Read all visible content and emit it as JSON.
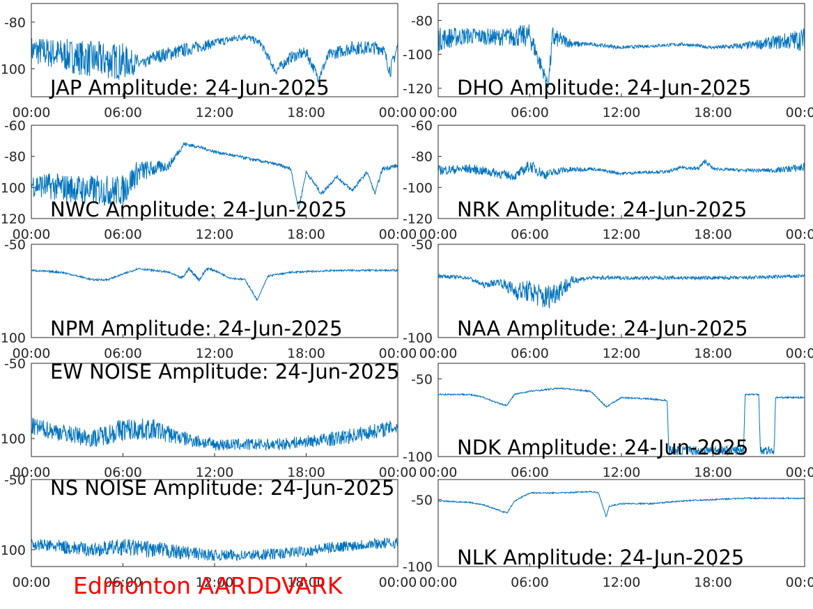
{
  "figure_label": "Edmonton AARDDVARK",
  "colors": {
    "line": "#0072BD",
    "axis": "#262626",
    "footer": "#ff0000"
  },
  "chart_data": [
    {
      "type": "line",
      "title": "JAP Amplitude: 24-Jun-2025",
      "xticks": [
        "00:00",
        "06:00",
        "12:00",
        "18:00",
        "00:00"
      ],
      "ylim": [
        -112,
        -72
      ],
      "yticks": [
        -80,
        -100
      ],
      "ytick_labels": [
        "-80",
        "100"
      ],
      "grid": false,
      "series": [
        {
          "x": [
            0,
            2,
            4,
            6,
            7.4,
            8,
            10,
            12,
            14,
            15,
            16,
            17,
            18,
            18.8,
            19.5,
            21,
            23,
            23.5,
            24
          ],
          "values": [
            -92,
            -94,
            -96,
            -97,
            -98,
            -95,
            -92,
            -89,
            -86,
            -89,
            -101,
            -95,
            -93,
            -104,
            -94,
            -91,
            -91,
            -101,
            -90
          ],
          "noise": [
            12,
            14,
            16,
            16,
            4,
            6,
            6,
            4,
            3,
            3,
            4,
            5,
            5,
            4,
            5,
            6,
            6,
            6,
            6
          ]
        }
      ]
    },
    {
      "type": "line",
      "title": "DHO Amplitude: 24-Jun-2025",
      "xticks": [
        "00:00",
        "06:00",
        "12:00",
        "18:00",
        "00:00"
      ],
      "ylim": [
        -125,
        -70
      ],
      "yticks": [
        -80,
        -100,
        -120
      ],
      "ytick_labels": [
        "-80",
        "-100",
        "-120"
      ],
      "grid": false,
      "series": [
        {
          "x": [
            0,
            2,
            4,
            6,
            7.2,
            7.5,
            7.8,
            9,
            10,
            12,
            14,
            16,
            18,
            20,
            22,
            24
          ],
          "values": [
            -91,
            -89,
            -90,
            -89,
            -118,
            -90,
            -91,
            -94,
            -94,
            -96,
            -95,
            -94,
            -96,
            -95,
            -93,
            -91
          ],
          "noise": [
            14,
            10,
            10,
            14,
            6,
            16,
            10,
            4,
            2,
            2,
            2,
            2,
            2,
            4,
            8,
            14
          ]
        }
      ]
    },
    {
      "type": "line",
      "title": "NWC Amplitude: 24-Jun-2025",
      "xticks": [
        "00:00",
        "06:00",
        "12:00",
        "18:00",
        "00:00"
      ],
      "ylim": [
        -120,
        -60
      ],
      "yticks": [
        -60,
        -80,
        -100,
        -120
      ],
      "ytick_labels": [
        "-60",
        "-80",
        "100",
        "120"
      ],
      "grid": false,
      "series": [
        {
          "x": [
            0,
            2,
            4,
            6,
            7,
            8,
            9,
            10,
            11,
            12,
            14,
            16,
            17,
            17.5,
            18,
            19,
            20,
            21,
            22,
            22.5,
            23,
            24
          ],
          "values": [
            -98,
            -100,
            -102,
            -102,
            -90,
            -88,
            -86,
            -72,
            -74,
            -77,
            -81,
            -85,
            -88,
            -114,
            -90,
            -104,
            -93,
            -102,
            -90,
            -104,
            -88,
            -86
          ],
          "noise": [
            16,
            18,
            20,
            20,
            16,
            10,
            6,
            3,
            2,
            2,
            2,
            2,
            2,
            3,
            2,
            3,
            2,
            3,
            2,
            2,
            3,
            3
          ]
        }
      ]
    },
    {
      "type": "line",
      "title": "NRK Amplitude: 24-Jun-2025",
      "xticks": [
        "00:00",
        "06:00",
        "12:00",
        "18:00",
        "00:00"
      ],
      "ylim": [
        -120,
        -60
      ],
      "yticks": [
        -60,
        -80,
        -100,
        -120
      ],
      "ytick_labels": [
        "-60",
        "-80",
        "-100",
        "-120"
      ],
      "grid": false,
      "series": [
        {
          "x": [
            0,
            2,
            4,
            5,
            6,
            7,
            8,
            10,
            12,
            14,
            15,
            16,
            17,
            17.5,
            18,
            20,
            22,
            24
          ],
          "values": [
            -89,
            -88,
            -91,
            -93,
            -86,
            -92,
            -89,
            -88,
            -91,
            -90,
            -90,
            -87,
            -88,
            -83,
            -88,
            -89,
            -89,
            -87
          ],
          "noise": [
            6,
            6,
            6,
            5,
            8,
            6,
            5,
            2,
            2,
            2,
            2,
            2,
            3,
            3,
            2,
            2,
            3,
            6
          ]
        }
      ]
    },
    {
      "type": "line",
      "title": "NPM Amplitude: 24-Jun-2025",
      "xticks": [
        "00:00",
        "06:00",
        "12:00",
        "18:00",
        "00:00"
      ],
      "ylim": [
        -100,
        -50
      ],
      "yticks": [
        -50,
        -100
      ],
      "ytick_labels": [
        "-50",
        "100"
      ],
      "grid": false,
      "series": [
        {
          "x": [
            0,
            2,
            4,
            5,
            6,
            7,
            9,
            9.8,
            10,
            10.3,
            11,
            11.5,
            12,
            13,
            14,
            14.8,
            15.5,
            17,
            20,
            24
          ],
          "values": [
            -64,
            -65,
            -69,
            -69,
            -66,
            -63,
            -65,
            -68,
            -67,
            -63,
            -69,
            -63,
            -64,
            -68,
            -69,
            -80,
            -67,
            -65,
            -64,
            -64
          ],
          "noise": [
            1,
            1,
            1,
            1,
            1,
            1,
            1,
            1,
            1,
            2,
            2,
            2,
            1,
            1,
            1,
            1,
            1,
            1,
            1,
            1
          ]
        }
      ]
    },
    {
      "type": "line",
      "title": "NAA Amplitude: 24-Jun-2025",
      "xticks": [
        "00:00",
        "06:00",
        "12:00",
        "18:00",
        "00:00"
      ],
      "ylim": [
        -100,
        -50
      ],
      "yticks": [
        -50,
        -100
      ],
      "ytick_labels": [
        "-50",
        "-100"
      ],
      "grid": false,
      "series": [
        {
          "x": [
            0,
            2,
            3,
            4,
            5,
            6,
            7,
            8,
            9,
            10,
            12,
            16,
            20,
            24
          ],
          "values": [
            -67,
            -68,
            -72,
            -70,
            -75,
            -75,
            -79,
            -74,
            -69,
            -68,
            -68,
            -68,
            -68,
            -67
          ],
          "noise": [
            2,
            2,
            3,
            4,
            10,
            12,
            14,
            12,
            4,
            2,
            2,
            2,
            2,
            2
          ]
        }
      ]
    },
    {
      "type": "line",
      "title": "EW NOISE Amplitude: 24-Jun-2025",
      "xticks": [
        "00:00",
        "06:00",
        "12:00",
        "18:00",
        "00:00"
      ],
      "ylim": [
        -112,
        -50
      ],
      "yticks": [
        -50,
        -100
      ],
      "ytick_labels": [
        "-50",
        "100"
      ],
      "grid": false,
      "series": [
        {
          "x": [
            0,
            2,
            4,
            6,
            8,
            10,
            12,
            14,
            16,
            18,
            20,
            22,
            24
          ],
          "values": [
            -92,
            -96,
            -100,
            -94,
            -94,
            -100,
            -104,
            -104,
            -104,
            -102,
            -100,
            -96,
            -92
          ],
          "noise": [
            12,
            12,
            12,
            16,
            14,
            10,
            8,
            8,
            8,
            8,
            10,
            10,
            10
          ]
        }
      ]
    },
    {
      "type": "line",
      "title": "NDK Amplitude: 24-Jun-2025",
      "xticks": [
        "00:00",
        "06:00",
        "12:00",
        "18:00",
        "00:00"
      ],
      "ylim": [
        -100,
        -40
      ],
      "yticks": [
        -50,
        -100
      ],
      "ytick_labels": [
        "-50",
        "-100"
      ],
      "grid": false,
      "series": [
        {
          "x": [
            0,
            2,
            3,
            4,
            4.5,
            5,
            6,
            8,
            9,
            10,
            11,
            12,
            14,
            15,
            15.1,
            18,
            20,
            20.1,
            21,
            21.1,
            22,
            22.1,
            24
          ],
          "values": [
            -60,
            -60,
            -62,
            -66,
            -67,
            -60,
            -58,
            -56,
            -57,
            -58,
            -68,
            -62,
            -63,
            -64,
            -96,
            -96,
            -96,
            -60,
            -60,
            -96,
            -96,
            -62,
            -62
          ],
          "noise": [
            1,
            1,
            1,
            1,
            1,
            1,
            1,
            1,
            1,
            1,
            1,
            1,
            1,
            1,
            6,
            6,
            6,
            1,
            1,
            6,
            6,
            1,
            1
          ]
        }
      ]
    },
    {
      "type": "line",
      "title": "NS NOISE Amplitude: 24-Jun-2025",
      "xticks": [
        "00:00",
        "06:00",
        "12:00",
        "18:00",
        "00:00"
      ],
      "ylim": [
        -112,
        -50
      ],
      "yticks": [
        -50,
        -100
      ],
      "ytick_labels": [
        "-50",
        "100"
      ],
      "grid": false,
      "series": [
        {
          "x": [
            0,
            2,
            4,
            6,
            8,
            10,
            12,
            14,
            16,
            18,
            20,
            22,
            24
          ],
          "values": [
            -96,
            -98,
            -100,
            -98,
            -100,
            -102,
            -104,
            -104,
            -103,
            -101,
            -98,
            -96,
            -95
          ],
          "noise": [
            8,
            10,
            10,
            12,
            12,
            10,
            8,
            8,
            8,
            8,
            8,
            8,
            8
          ]
        }
      ]
    },
    {
      "type": "line",
      "title": "NLK Amplitude: 24-Jun-2025",
      "xticks": [
        "00:00",
        "06:00",
        "12:00",
        "18:00",
        "00:00"
      ],
      "ylim": [
        -100,
        -35
      ],
      "yticks": [
        -50,
        -100
      ],
      "ytick_labels": [
        "-50",
        "-100"
      ],
      "grid": false,
      "series": [
        {
          "x": [
            0,
            2,
            3,
            4,
            4.5,
            5,
            6,
            8,
            10,
            10.5,
            11,
            11.2,
            12,
            14,
            16,
            18,
            20,
            24
          ],
          "values": [
            -51,
            -52,
            -54,
            -58,
            -60,
            -51,
            -45,
            -45,
            -44,
            -45,
            -63,
            -55,
            -53,
            -53,
            -51,
            -50,
            -49,
            -49
          ],
          "noise": [
            1,
            1,
            1,
            1,
            1,
            1,
            1,
            1,
            1,
            1,
            1,
            1,
            1,
            1,
            1,
            1,
            1,
            1
          ]
        }
      ]
    }
  ]
}
